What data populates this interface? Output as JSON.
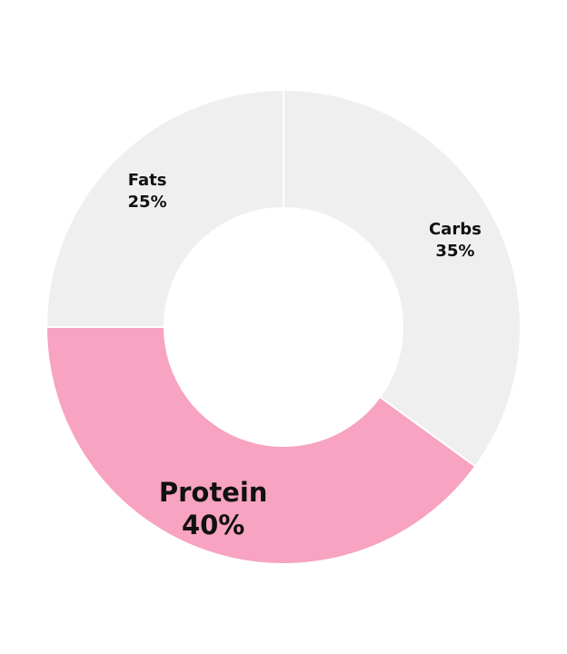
{
  "chart_data": {
    "type": "pie",
    "variant": "donut",
    "title": "",
    "start_direction": "top",
    "rotation": "clockwise",
    "categories": [
      "Carbs",
      "Protein",
      "Fats"
    ],
    "values": [
      35,
      40,
      25
    ],
    "value_suffix": "%",
    "colors": [
      "#efefef",
      "#f7a3c1",
      "#efefef"
    ],
    "highlighted": "Protein",
    "data_labels": [
      {
        "name": "Carbs",
        "text": "35%"
      },
      {
        "name": "Protein",
        "text": "40%"
      },
      {
        "name": "Fats",
        "text": "25%"
      }
    ]
  }
}
